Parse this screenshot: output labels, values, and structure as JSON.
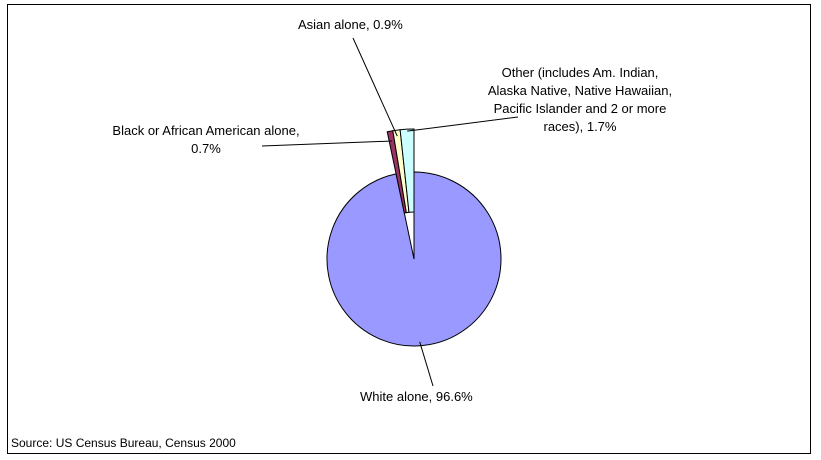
{
  "chart_data": {
    "type": "pie",
    "title": "",
    "slices": [
      {
        "label": "White alone, 96.6%",
        "value": 96.6,
        "color": "#9999ff",
        "exploded": false
      },
      {
        "label": "Black or African American alone, 0.7%",
        "value": 0.7,
        "color": "#993366",
        "exploded": true
      },
      {
        "label": "Asian alone, 0.9%",
        "value": 0.9,
        "color": "#ffffcc",
        "exploded": true
      },
      {
        "label": "Other (includes Am. Indian, Alaska Native, Native Hawaiian, Pacific Islander and 2 or more races), 1.7%",
        "value": 1.7,
        "color": "#ccffff",
        "exploded": true
      }
    ],
    "legend": "none"
  },
  "source": "Source: US Census Bureau, Census 2000"
}
